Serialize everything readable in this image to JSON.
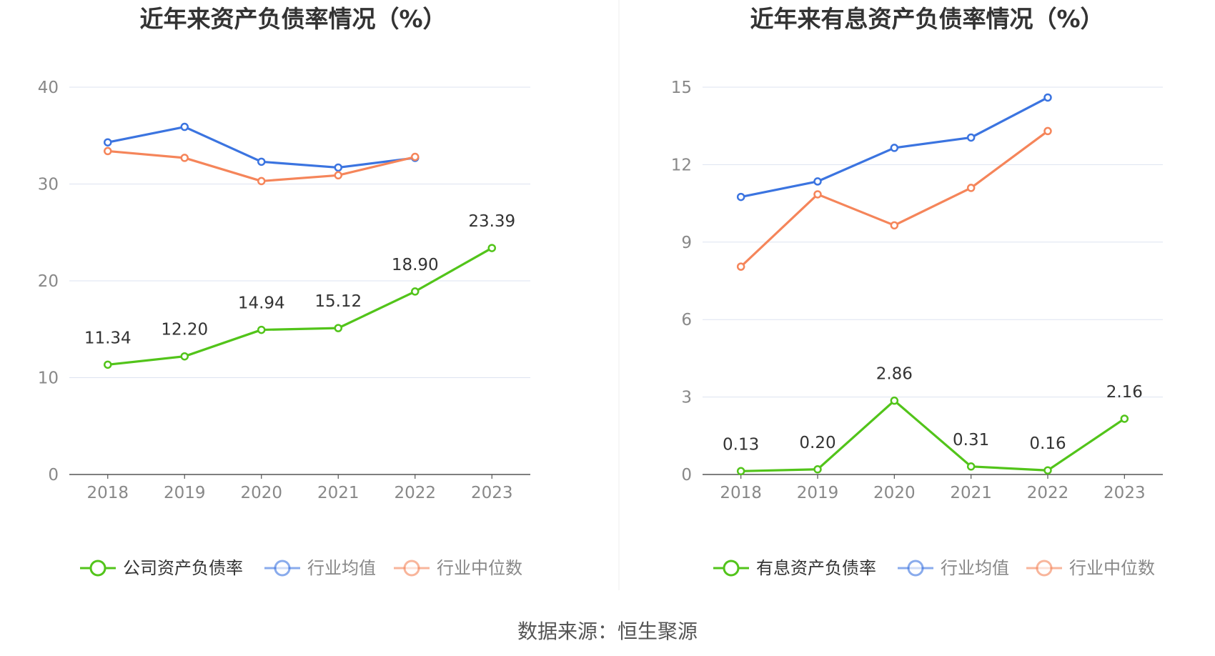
{
  "source": "数据来源：恒生聚源",
  "colors": {
    "company": "#52c41a",
    "industry_avg": "#3b74e0",
    "industry_median": "#f5855a",
    "grid": "#dde3f0",
    "axis": "#555555",
    "tick_text": "#888888",
    "label_text": "#333333"
  },
  "chart_data": [
    {
      "type": "line",
      "title": "近年来资产负债率情况（%）",
      "x": [
        "2018",
        "2019",
        "2020",
        "2021",
        "2022",
        "2023"
      ],
      "ylim": [
        0,
        40
      ],
      "yticks": [
        0,
        10,
        20,
        30,
        40
      ],
      "grid": true,
      "legend_position": "bottom",
      "series": [
        {
          "name": "公司资产负债率",
          "color_key": "company",
          "values": [
            11.34,
            12.2,
            14.94,
            15.12,
            18.9,
            23.39
          ],
          "labels": [
            "11.34",
            "12.20",
            "14.94",
            "15.12",
            "18.90",
            "23.39"
          ]
        },
        {
          "name": "行业均值",
          "color_key": "industry_avg",
          "values": [
            34.3,
            35.9,
            32.3,
            31.7,
            32.7,
            null
          ]
        },
        {
          "name": "行业中位数",
          "color_key": "industry_median",
          "values": [
            33.4,
            32.7,
            30.3,
            30.9,
            32.8,
            null
          ]
        }
      ]
    },
    {
      "type": "line",
      "title": "近年来有息资产负债率情况（%）",
      "x": [
        "2018",
        "2019",
        "2020",
        "2021",
        "2022",
        "2023"
      ],
      "ylim": [
        0,
        15
      ],
      "yticks": [
        0,
        3,
        6,
        9,
        12,
        15
      ],
      "grid": true,
      "legend_position": "bottom",
      "series": [
        {
          "name": "有息资产负债率",
          "color_key": "company",
          "values": [
            0.13,
            0.2,
            2.86,
            0.31,
            0.16,
            2.16
          ],
          "labels": [
            "0.13",
            "0.20",
            "2.86",
            "0.31",
            "0.16",
            "2.16"
          ]
        },
        {
          "name": "行业均值",
          "color_key": "industry_avg",
          "values": [
            10.75,
            11.35,
            12.65,
            13.05,
            14.6,
            null
          ]
        },
        {
          "name": "行业中位数",
          "color_key": "industry_median",
          "values": [
            8.05,
            10.85,
            9.65,
            11.1,
            13.3,
            null
          ]
        }
      ]
    }
  ]
}
